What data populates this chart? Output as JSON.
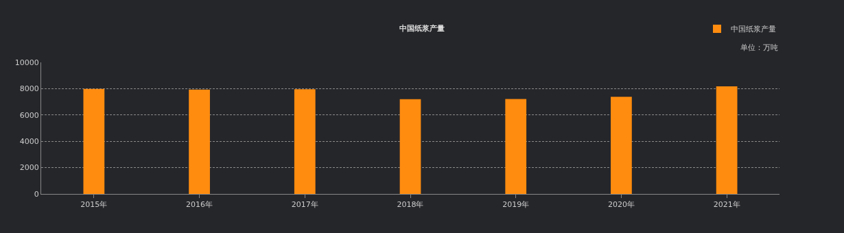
{
  "chart_data": {
    "type": "bar",
    "title": "中国纸浆产量",
    "annotations": [
      "单位：万吨"
    ],
    "categories": [
      "2015年",
      "2016年",
      "2017年",
      "2018年",
      "2019年",
      "2020年",
      "2021年"
    ],
    "series": [
      {
        "name": "中国纸浆产量",
        "color": "#ff8c0f",
        "values": [
          7980,
          7930,
          7950,
          7200,
          7210,
          7380,
          8180
        ]
      }
    ],
    "ylim": [
      0,
      10000
    ],
    "yticks": [
      0,
      2000,
      4000,
      6000,
      8000,
      10000
    ],
    "grid": "y",
    "legend": "top right"
  }
}
